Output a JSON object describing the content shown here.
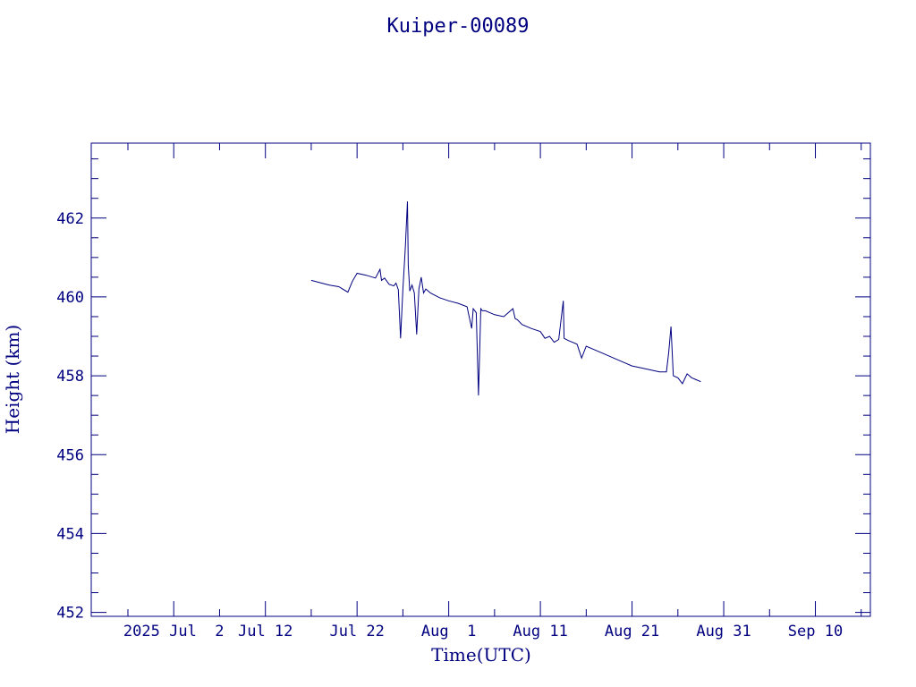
{
  "chart_data": {
    "type": "line",
    "title": "Kuiper-00089",
    "xlabel": "Time(UTC)",
    "ylabel": "Height (km)",
    "x_tick_labels": [
      "2025 Jul  2",
      "Jul 12",
      "Jul 22",
      "Aug  1",
      "Aug 11",
      "Aug 21",
      "Aug 31",
      "Sep 10"
    ],
    "y_tick_labels": [
      "452",
      "454",
      "456",
      "458",
      "460",
      "462"
    ],
    "xlim": [
      "2025-06-23",
      "2025-09-16"
    ],
    "ylim": [
      451.9,
      463.9
    ],
    "grid": false,
    "color": "#000080",
    "series": [
      {
        "x": [
          "2025-07-17T00:00",
          "2025-07-18T00:00",
          "2025-07-19T00:00",
          "2025-07-20T00:00",
          "2025-07-21T00:00",
          "2025-07-21T12:00",
          "2025-07-22T00:00",
          "2025-07-23T00:00",
          "2025-07-24T00:00",
          "2025-07-24T12:00",
          "2025-07-24T16:00",
          "2025-07-25T00:00",
          "2025-07-25T12:00",
          "2025-07-26T00:00",
          "2025-07-26T06:00",
          "2025-07-26T12:00",
          "2025-07-26T18:00",
          "2025-07-27T00:00",
          "2025-07-27T06:00",
          "2025-07-27T12:00",
          "2025-07-27T14:00",
          "2025-07-27T18:00",
          "2025-07-28T00:00",
          "2025-07-28T06:00",
          "2025-07-28T12:00",
          "2025-07-28T18:00",
          "2025-07-29T00:00",
          "2025-07-29T06:00",
          "2025-07-29T12:00",
          "2025-07-29T18:00",
          "2025-07-30T00:00",
          "2025-07-31T00:00",
          "2025-08-01T00:00",
          "2025-08-02T00:00",
          "2025-08-03T00:00",
          "2025-08-03T12:00",
          "2025-08-03T16:00",
          "2025-08-04T00:00",
          "2025-08-04T06:00",
          "2025-08-04T12:00",
          "2025-08-04T16:00",
          "2025-08-05T00:00",
          "2025-08-06T00:00",
          "2025-08-07T00:00",
          "2025-08-08T00:00",
          "2025-08-08T06:00",
          "2025-08-08T12:00",
          "2025-08-09T00:00",
          "2025-08-10T00:00",
          "2025-08-11T00:00",
          "2025-08-11T12:00",
          "2025-08-12T00:00",
          "2025-08-12T12:00",
          "2025-08-13T00:00",
          "2025-08-13T12:00",
          "2025-08-13T14:00",
          "2025-08-14T00:00",
          "2025-08-15T00:00",
          "2025-08-15T12:00",
          "2025-08-16T00:00",
          "2025-08-17T00:00",
          "2025-08-18T00:00",
          "2025-08-19T00:00",
          "2025-08-20T00:00",
          "2025-08-21T00:00",
          "2025-08-22T00:00",
          "2025-08-23T00:00",
          "2025-08-24T00:00",
          "2025-08-24T18:00",
          "2025-08-25T00:00",
          "2025-08-25T06:00",
          "2025-08-25T12:00",
          "2025-08-26T00:00",
          "2025-08-26T12:00",
          "2025-08-27T00:00",
          "2025-08-27T12:00",
          "2025-08-28T00:00",
          "2025-08-28T12:00"
        ],
        "y": [
          460.42,
          460.36,
          460.3,
          460.26,
          460.12,
          460.4,
          460.6,
          460.55,
          460.48,
          460.7,
          460.42,
          460.48,
          460.32,
          460.28,
          460.35,
          460.18,
          458.95,
          460.2,
          461.2,
          462.42,
          460.8,
          460.15,
          460.3,
          460.1,
          459.05,
          460.2,
          460.5,
          460.1,
          460.2,
          460.15,
          460.1,
          459.98,
          459.9,
          459.84,
          459.75,
          459.2,
          459.7,
          459.6,
          457.5,
          459.7,
          459.65,
          459.65,
          459.55,
          459.5,
          459.7,
          459.45,
          459.42,
          459.3,
          459.2,
          459.12,
          458.95,
          459.0,
          458.85,
          458.92,
          459.9,
          458.95,
          458.9,
          458.8,
          458.45,
          458.75,
          458.65,
          458.55,
          458.45,
          458.35,
          458.25,
          458.2,
          458.15,
          458.1,
          458.1,
          458.6,
          459.25,
          458.0,
          457.95,
          457.8,
          458.05,
          457.95,
          457.9,
          457.85
        ]
      }
    ]
  }
}
